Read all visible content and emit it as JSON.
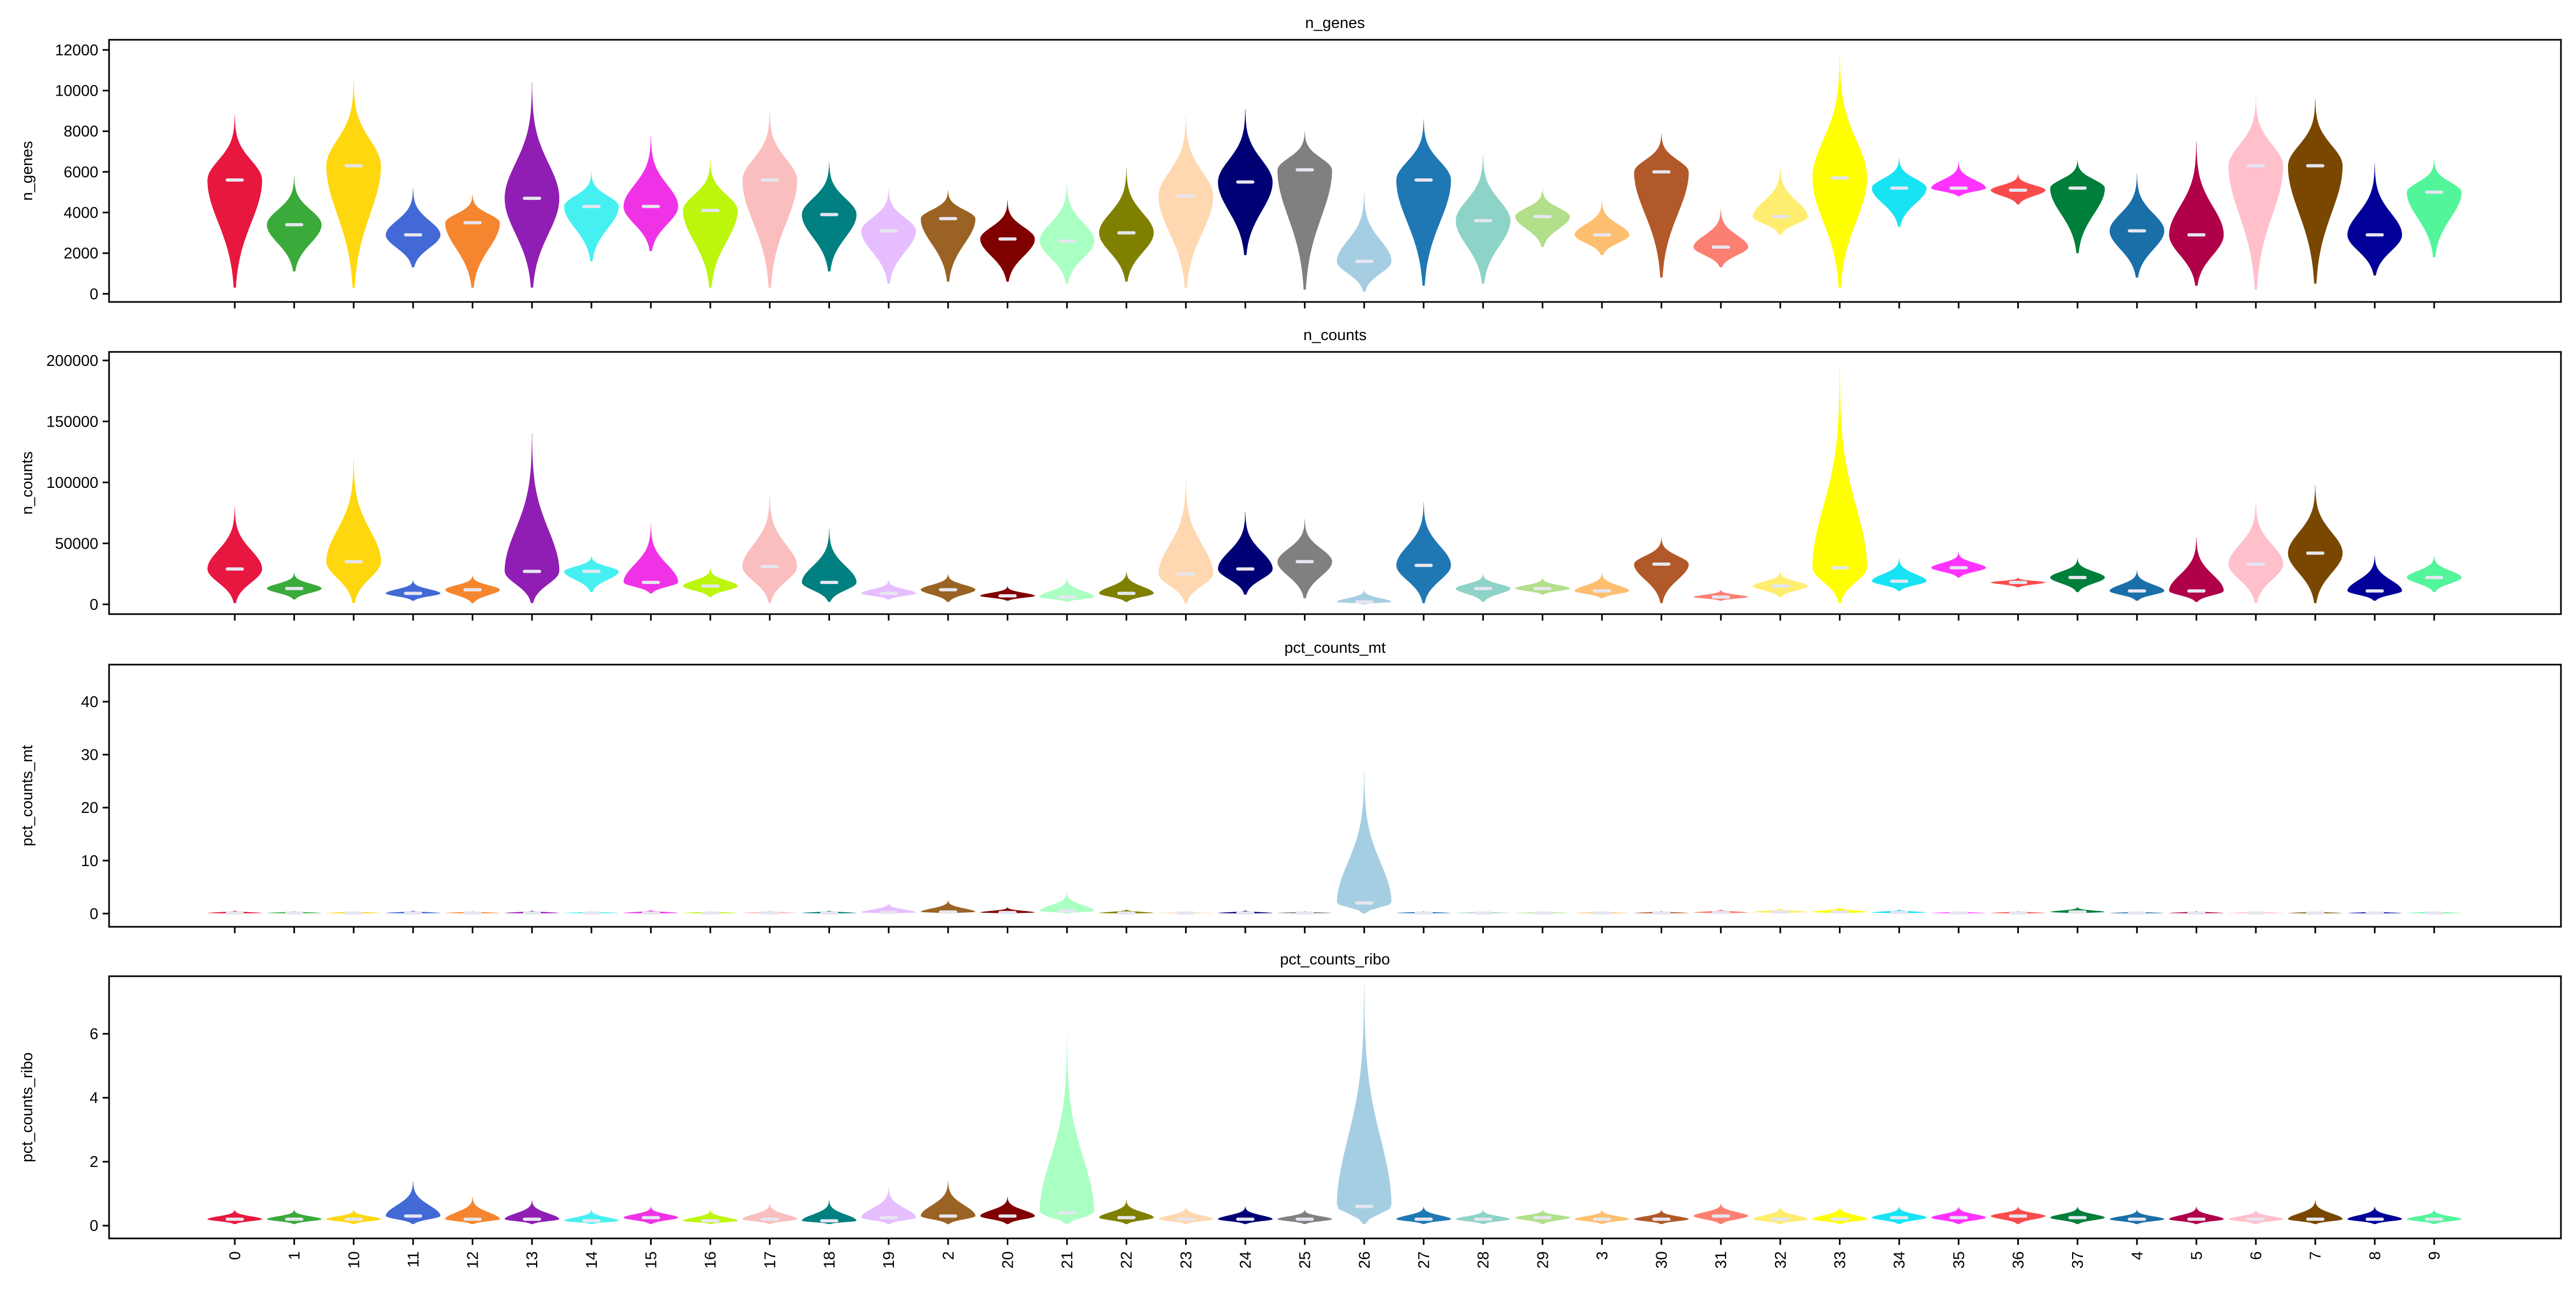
{
  "chart_data": [
    {
      "type": "violin",
      "title": "n_genes",
      "ylabel": "n_genes",
      "ylim": [
        -400,
        12500
      ],
      "yticks": [
        0,
        2000,
        4000,
        6000,
        8000,
        10000,
        12000
      ],
      "ytick_labels": [
        "0",
        "2000",
        "4000",
        "6000",
        "8000",
        "10000",
        "12000"
      ],
      "show_xticklabels": false,
      "categories": [
        "0",
        "1",
        "10",
        "11",
        "12",
        "13",
        "14",
        "15",
        "16",
        "17",
        "18",
        "19",
        "2",
        "20",
        "21",
        "22",
        "23",
        "24",
        "25",
        "26",
        "27",
        "28",
        "29",
        "3",
        "30",
        "31",
        "32",
        "33",
        "34",
        "35",
        "36",
        "37",
        "4",
        "5",
        "6",
        "7",
        "8",
        "9"
      ],
      "colors": [
        "#e8173f",
        "#3aaa3a",
        "#ffd70f",
        "#4269d6",
        "#f5862f",
        "#911eb4",
        "#46f0f0",
        "#f032e6",
        "#bcf60c",
        "#fabebe",
        "#008080",
        "#e6beff",
        "#9a6324",
        "#800000",
        "#aaffc3",
        "#808000",
        "#ffd8b1",
        "#000075",
        "#808080",
        "#a6cee3",
        "#1f78b4",
        "#8dd3c7",
        "#b2df8a",
        "#fdbf6f",
        "#b15928",
        "#fb8072",
        "#ffed6f",
        "#ffff00",
        "#18e3f5",
        "#ff33ff",
        "#fa4b4b",
        "#007f3b",
        "#1a6fa8",
        "#b0004a",
        "#ffc0cb",
        "#7a4700",
        "#000099",
        "#53f59a"
      ],
      "medians": [
        5600,
        3400,
        6300,
        2900,
        3500,
        4700,
        4300,
        4300,
        4100,
        5600,
        3900,
        3100,
        3700,
        2700,
        2600,
        3000,
        4800,
        5500,
        6100,
        1600,
        5600,
        3600,
        3800,
        2900,
        6000,
        2300,
        3800,
        5700,
        5200,
        5200,
        5100,
        5200,
        3100,
        2900,
        6300,
        6300,
        2900,
        5000
      ],
      "mins": [
        300,
        1100,
        300,
        1300,
        300,
        300,
        1600,
        2100,
        300,
        300,
        1100,
        500,
        600,
        600,
        500,
        600,
        300,
        1900,
        200,
        100,
        400,
        500,
        2300,
        1900,
        800,
        1300,
        2900,
        300,
        3300,
        4800,
        4400,
        2000,
        800,
        400,
        200,
        500,
        900,
        1800
      ],
      "maxs": [
        8800,
        5800,
        10500,
        5200,
        4900,
        10400,
        6000,
        7800,
        6600,
        9000,
        6500,
        5200,
        5100,
        4600,
        5500,
        6200,
        8800,
        9100,
        8000,
        5000,
        8600,
        6900,
        5200,
        4600,
        7900,
        4200,
        6300,
        11900,
        6700,
        6500,
        5900,
        6600,
        5900,
        7500,
        9700,
        9600,
        6400,
        6600
      ]
    },
    {
      "type": "violin",
      "title": "n_counts",
      "ylabel": "n_counts",
      "ylim": [
        -8000,
        207000
      ],
      "yticks": [
        0,
        50000,
        100000,
        150000,
        200000
      ],
      "ytick_labels": [
        "0",
        "50000",
        "100000",
        "150000",
        "200000"
      ],
      "show_xticklabels": false,
      "medians": [
        29000,
        13000,
        35000,
        9000,
        12000,
        27000,
        27000,
        18000,
        15000,
        31000,
        18000,
        9000,
        12000,
        7000,
        6000,
        9000,
        25000,
        29000,
        35000,
        2000,
        32000,
        13000,
        13000,
        11000,
        33000,
        6000,
        15000,
        30000,
        19000,
        30000,
        18000,
        22000,
        11000,
        11000,
        33000,
        42000,
        11000,
        22000
      ],
      "mins": [
        1000,
        4000,
        1000,
        3000,
        1000,
        1000,
        10000,
        9000,
        6000,
        1000,
        2000,
        4000,
        2000,
        3000,
        2000,
        2000,
        1000,
        8000,
        5000,
        100,
        1000,
        2000,
        8000,
        5000,
        1000,
        3000,
        6000,
        1000,
        11000,
        22000,
        14000,
        10000,
        3000,
        2000,
        1000,
        1000,
        3000,
        10000
      ],
      "maxs": [
        80000,
        26000,
        120000,
        20000,
        24000,
        140000,
        40000,
        66000,
        30000,
        90000,
        62000,
        20000,
        25000,
        15000,
        22000,
        27000,
        103000,
        76000,
        70000,
        12000,
        84000,
        25000,
        22000,
        26000,
        55000,
        12000,
        27000,
        195000,
        38000,
        43000,
        22000,
        38000,
        28000,
        55000,
        85000,
        98000,
        40000,
        40000
      ]
    },
    {
      "type": "violin",
      "title": "pct_counts_mt",
      "ylabel": "pct_counts_mt",
      "ylim": [
        -2.5,
        47
      ],
      "yticks": [
        0,
        10,
        20,
        30,
        40
      ],
      "ytick_labels": [
        "0",
        "10",
        "20",
        "30",
        "40"
      ],
      "show_xticklabels": false,
      "medians": [
        0.1,
        0.1,
        0.1,
        0.1,
        0.1,
        0.1,
        0.1,
        0.1,
        0.1,
        0.1,
        0.1,
        0.2,
        0.3,
        0.2,
        0.5,
        0.1,
        0.1,
        0.1,
        0.1,
        2.0,
        0.1,
        0.1,
        0.1,
        0.1,
        0.1,
        0.2,
        0.3,
        0.3,
        0.2,
        0.1,
        0.1,
        0.3,
        0.1,
        0.1,
        0.1,
        0.1,
        0.1,
        0.1
      ],
      "mins": [
        0,
        0,
        0,
        0,
        0,
        0,
        0,
        0,
        0,
        0,
        0,
        0,
        0,
        0,
        0,
        0,
        0,
        0,
        0,
        0,
        0,
        0,
        0,
        0,
        0,
        0,
        0,
        0,
        0,
        0,
        0,
        0,
        0,
        0,
        0,
        0,
        0,
        0
      ],
      "maxs": [
        0.6,
        0.5,
        0.5,
        0.6,
        0.5,
        0.6,
        0.5,
        0.7,
        0.5,
        0.6,
        0.6,
        2.0,
        2.5,
        1.2,
        4.0,
        0.8,
        0.4,
        0.6,
        0.5,
        27.0,
        0.5,
        0.4,
        0.4,
        0.4,
        0.5,
        0.8,
        1.0,
        1.2,
        0.8,
        0.4,
        0.5,
        1.2,
        0.4,
        0.5,
        0.5,
        0.4,
        0.4,
        0.4
      ]
    },
    {
      "type": "violin",
      "title": "pct_counts_ribo",
      "ylabel": "pct_counts_ribo",
      "ylim": [
        -0.4,
        7.8
      ],
      "yticks": [
        0,
        2,
        4,
        6
      ],
      "ytick_labels": [
        "0",
        "2",
        "4",
        "6"
      ],
      "show_xticklabels": true,
      "medians": [
        0.2,
        0.2,
        0.2,
        0.3,
        0.2,
        0.2,
        0.15,
        0.25,
        0.15,
        0.2,
        0.15,
        0.25,
        0.3,
        0.3,
        0.4,
        0.25,
        0.2,
        0.2,
        0.2,
        0.6,
        0.2,
        0.2,
        0.25,
        0.2,
        0.2,
        0.3,
        0.2,
        0.2,
        0.25,
        0.25,
        0.3,
        0.25,
        0.2,
        0.2,
        0.2,
        0.2,
        0.2,
        0.2
      ],
      "mins": [
        0.05,
        0.05,
        0.05,
        0.05,
        0.05,
        0.05,
        0.05,
        0.05,
        0.05,
        0.05,
        0.05,
        0.05,
        0.05,
        0.05,
        0.05,
        0.05,
        0.05,
        0.05,
        0.05,
        0.05,
        0.05,
        0.05,
        0.05,
        0.05,
        0.05,
        0.05,
        0.05,
        0.05,
        0.05,
        0.05,
        0.05,
        0.05,
        0.05,
        0.05,
        0.05,
        0.05,
        0.05,
        0.05
      ],
      "maxs": [
        0.5,
        0.5,
        0.5,
        1.4,
        0.9,
        0.8,
        0.5,
        0.6,
        0.5,
        0.7,
        0.8,
        1.2,
        1.4,
        0.9,
        6.0,
        0.8,
        0.6,
        0.6,
        0.5,
        7.6,
        0.6,
        0.5,
        0.5,
        0.5,
        0.5,
        0.7,
        0.6,
        0.6,
        0.6,
        0.6,
        0.6,
        0.6,
        0.5,
        0.6,
        0.5,
        0.8,
        0.6,
        0.5
      ]
    }
  ]
}
